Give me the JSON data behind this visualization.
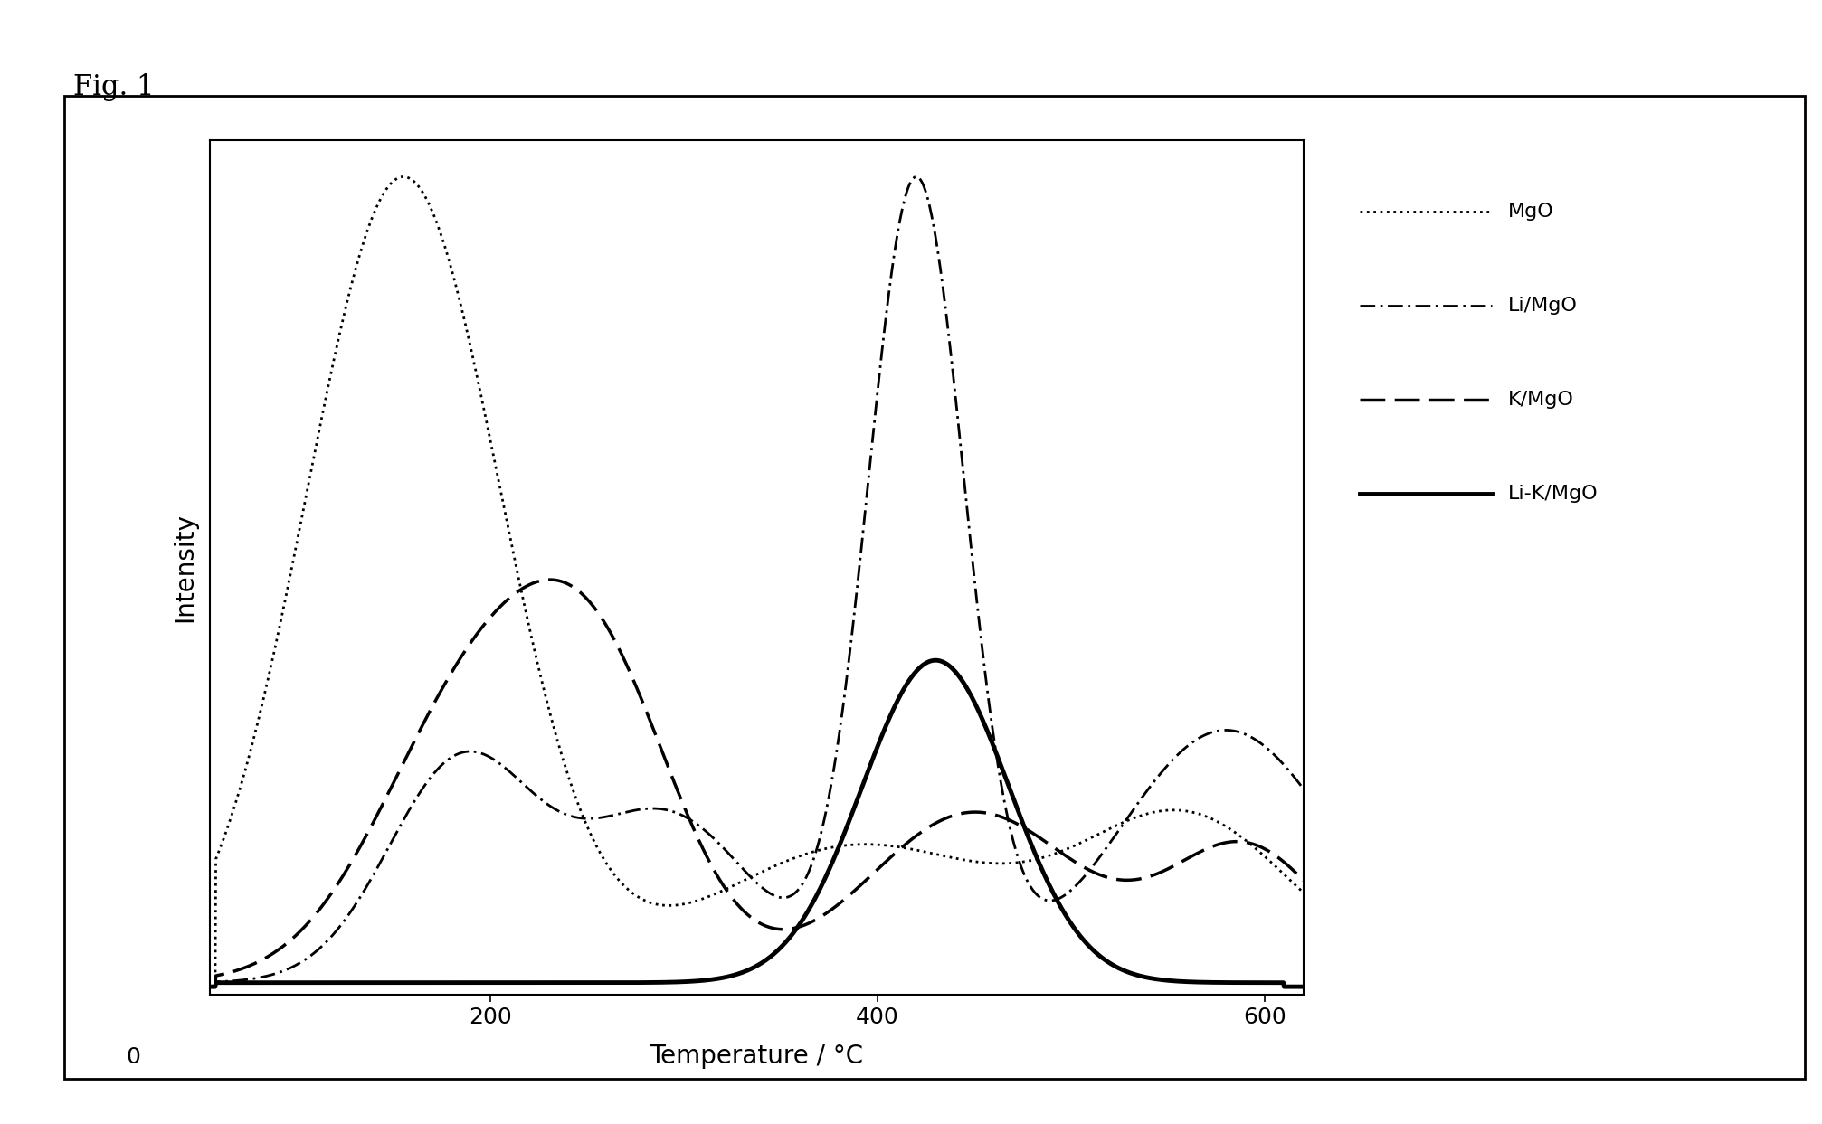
{
  "fig_label": "Fig. 1",
  "xlabel": "Temperature / °C",
  "ylabel": "Intensity",
  "xlim": [
    50,
    620
  ],
  "ylim": [
    0,
    1.05
  ],
  "xticks": [
    0,
    200,
    400,
    600
  ],
  "xtick_labels": [
    "0",
    "200",
    "400",
    "600"
  ],
  "background_color": "#ffffff",
  "legend_entries": [
    "MgO",
    "Li/MgO",
    "K/MgO",
    "Li-K/MgO"
  ],
  "line_colors": [
    "black",
    "black",
    "black",
    "black"
  ],
  "mgo_peaks": [
    {
      "mu": 155,
      "sigma": 50,
      "amp": 1.0
    },
    {
      "mu": 390,
      "sigma": 75,
      "amp": 0.17
    },
    {
      "mu": 560,
      "sigma": 55,
      "amp": 0.2
    }
  ],
  "li_mgo_peaks": [
    {
      "mu": 185,
      "sigma": 38,
      "amp": 0.26
    },
    {
      "mu": 290,
      "sigma": 45,
      "amp": 0.2
    },
    {
      "mu": 420,
      "sigma": 25,
      "amp": 0.95
    },
    {
      "mu": 580,
      "sigma": 55,
      "amp": 0.3
    }
  ],
  "k_mgo_peaks": [
    {
      "mu": 195,
      "sigma": 50,
      "amp": 0.48
    },
    {
      "mu": 260,
      "sigma": 40,
      "amp": 0.38
    },
    {
      "mu": 450,
      "sigma": 55,
      "amp": 0.28
    },
    {
      "mu": 590,
      "sigma": 40,
      "amp": 0.22
    }
  ],
  "li_k_mgo_peaks": [
    {
      "mu": 430,
      "sigma": 38,
      "amp": 0.4
    }
  ],
  "mgo_scale": 1.0,
  "li_mgo_scale": 1.0,
  "k_mgo_scale": 0.5,
  "li_k_mgo_scale": 0.4
}
